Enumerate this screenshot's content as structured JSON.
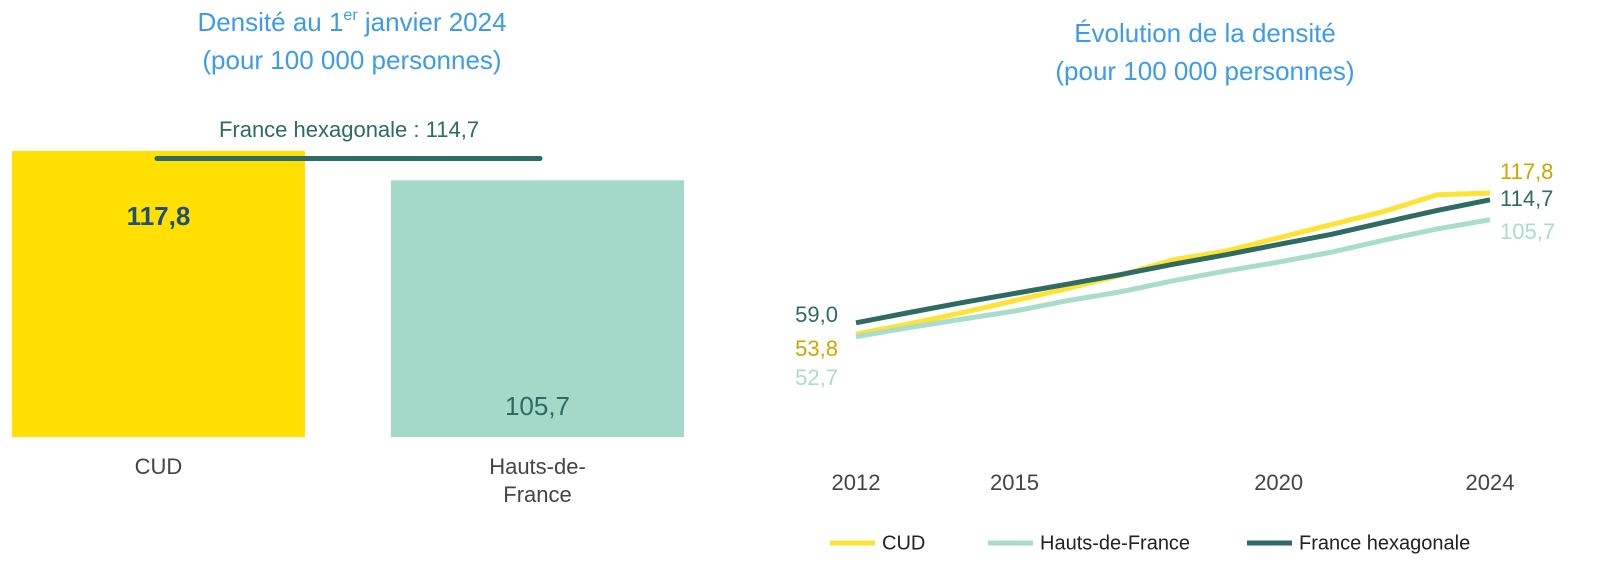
{
  "chart_data": [
    {
      "type": "bar",
      "title": [
        "Densité au 1",
        "er",
        " janvier 2024"
      ],
      "subtitle": "(pour 100 000 personnes)",
      "categories": [
        "CUD",
        "Hauts-de-France"
      ],
      "values": [
        117.8,
        105.7
      ],
      "value_labels": [
        "117,8",
        "105,7"
      ],
      "colors": [
        "#ffe000",
        "#a3d9c8"
      ],
      "label_colors": [
        "#1f4e79",
        "#2e6b63"
      ],
      "ylim": [
        0,
        120
      ],
      "reference": {
        "label": "France hexagonale : 114,7",
        "value": 114.7,
        "color": "#2e6b63"
      }
    },
    {
      "type": "line",
      "title": "Évolution de la densité",
      "subtitle": "(pour 100 000 personnes)",
      "x": [
        2012,
        2013,
        2014,
        2015,
        2016,
        2017,
        2018,
        2019,
        2020,
        2021,
        2022,
        2023,
        2024
      ],
      "xlim": [
        2012,
        2024
      ],
      "xticks": [
        2012,
        2015,
        2020,
        2024
      ],
      "ylim": [
        0,
        140
      ],
      "series": [
        {
          "name": "CUD",
          "color": "#fde333",
          "label_color": "#c8a800",
          "values": [
            53.8,
            58.5,
            63.5,
            69.0,
            74.5,
            80.5,
            87.5,
            91.5,
            97.5,
            103.5,
            109.5,
            117.0,
            117.8
          ],
          "value_labels": [
            "53,8",
            null,
            null,
            null,
            null,
            null,
            null,
            null,
            null,
            null,
            null,
            null,
            "117,8"
          ]
        },
        {
          "name": "Hauts-de-France",
          "color": "#a8dccb",
          "label_color": "#a8dccb",
          "values": [
            52.7,
            56.8,
            60.6,
            64.3,
            69.0,
            73.0,
            78.0,
            82.5,
            86.5,
            91.0,
            96.5,
            101.5,
            105.7
          ],
          "value_labels": [
            "52,7",
            null,
            null,
            null,
            null,
            null,
            null,
            null,
            null,
            null,
            null,
            null,
            "105,7"
          ]
        },
        {
          "name": "France hexagonale",
          "color": "#2e6b63",
          "label_color": "#2e6b63",
          "values": [
            59.0,
            63.6,
            68.1,
            72.3,
            76.5,
            80.8,
            85.5,
            89.8,
            94.5,
            99.1,
            104.5,
            109.9,
            114.7
          ],
          "value_labels": [
            "59,0",
            null,
            null,
            null,
            null,
            null,
            null,
            null,
            null,
            null,
            null,
            null,
            "114,7"
          ]
        }
      ],
      "legend": "bottom"
    }
  ]
}
